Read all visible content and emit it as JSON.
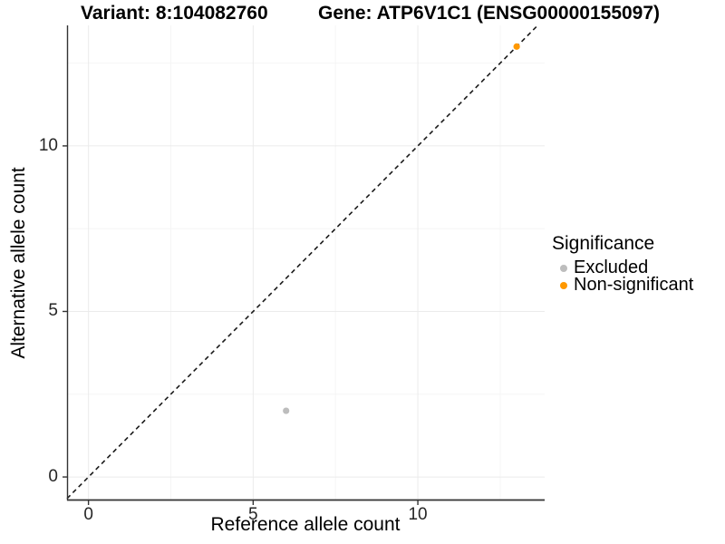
{
  "titles": {
    "variant": "Variant: 8:104082760",
    "gene": "Gene: ATP6V1C1 (ENSG00000155097)"
  },
  "chart_data": {
    "type": "scatter",
    "title_left": "Variant: 8:104082760",
    "title_right": "Gene: ATP6V1C1 (ENSG00000155097)",
    "xlabel": "Reference allele count",
    "ylabel": "Alternative allele count",
    "xlim": [
      -0.65,
      13.85
    ],
    "ylim": [
      -0.71,
      13.64
    ],
    "xticks": [
      0,
      5,
      10
    ],
    "yticks": [
      0,
      5,
      10
    ],
    "x_minor_ticks": [
      2.5,
      7.5,
      12.5
    ],
    "y_minor_ticks": [
      2.5,
      7.5,
      12.5
    ],
    "grid": true,
    "abline": {
      "slope": 1,
      "intercept": 0,
      "style": "dashed"
    },
    "series": [
      {
        "name": "Excluded",
        "color": "#BDBDBD",
        "points": [
          {
            "x": 6,
            "y": 2
          }
        ]
      },
      {
        "name": "Non-significant",
        "color": "#FF9800",
        "points": [
          {
            "x": 13,
            "y": 13
          }
        ]
      }
    ],
    "legend": {
      "title": "Significance",
      "position": "right"
    }
  },
  "colors": {
    "excluded": "#BDBDBD",
    "non_significant": "#FF9800",
    "grid_major": "#EBEBEB",
    "grid_minor": "#F5F5F5",
    "axis_line": "#333333",
    "tick_mark": "#333333",
    "abline": "#1A1A1A"
  }
}
